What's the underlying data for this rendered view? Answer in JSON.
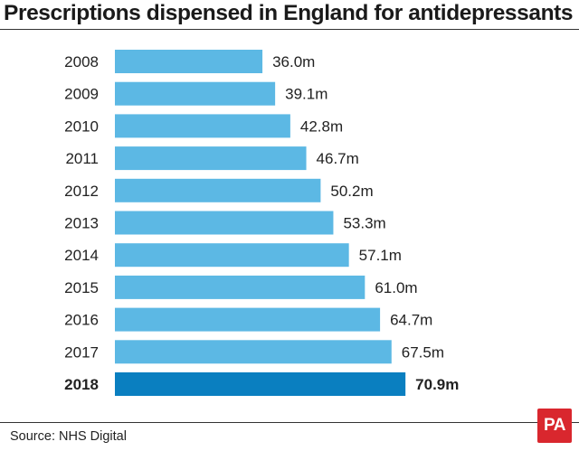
{
  "title": "Prescriptions dispensed in England for antidepressants",
  "source": "Source: NHS Digital",
  "logo": "PA",
  "colors": {
    "bar": "#5cb8e4",
    "highlight": "#0a7fc0"
  },
  "chart_data": {
    "type": "bar",
    "orientation": "horizontal",
    "categories": [
      "2008",
      "2009",
      "2010",
      "2011",
      "2012",
      "2013",
      "2014",
      "2015",
      "2016",
      "2017",
      "2018"
    ],
    "values": [
      36.0,
      39.1,
      42.8,
      46.7,
      50.2,
      53.3,
      57.1,
      61.0,
      64.7,
      67.5,
      70.9
    ],
    "value_labels": [
      "36.0m",
      "39.1m",
      "42.8m",
      "46.7m",
      "50.2m",
      "53.3m",
      "57.1m",
      "61.0m",
      "64.7m",
      "67.5m",
      "70.9m"
    ],
    "highlight_category": "2018",
    "title": "Prescriptions dispensed in England for antidepressants",
    "xlabel": "",
    "ylabel": "",
    "xlim": [
      0,
      72
    ]
  }
}
